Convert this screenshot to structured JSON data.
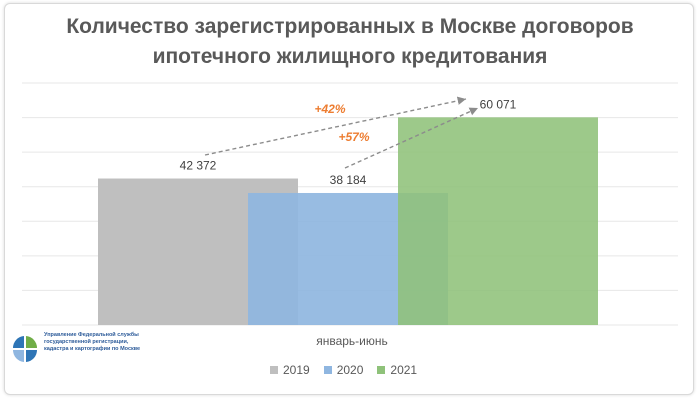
{
  "chart_data": {
    "type": "bar",
    "title_line1": "Количество зарегистрированных в Москве договоров",
    "title_line2": "ипотечного жилищного кредитования",
    "categories": [
      "январь-июнь"
    ],
    "series": [
      {
        "name": "2019",
        "values": [
          42372
        ],
        "label": "42 372",
        "color": "#bfbfbf"
      },
      {
        "name": "2020",
        "values": [
          38184
        ],
        "label": "38 184",
        "color": "#8fb6e0"
      },
      {
        "name": "2021",
        "values": [
          60071
        ],
        "label": "60 071",
        "color": "#8fc27a"
      }
    ],
    "ylim": [
      0,
      70000
    ],
    "grid": true,
    "legend_position": "bottom",
    "annotations": [
      {
        "text": "+42%",
        "from": "2019",
        "to": "2021",
        "color": "#ed7d31"
      },
      {
        "text": "+57%",
        "from": "2020",
        "to": "2021",
        "color": "#ed7d31"
      }
    ]
  },
  "logo": {
    "text": "Управление Федеральной службы государственной регистрации, кадастра и картографии по Москве"
  }
}
